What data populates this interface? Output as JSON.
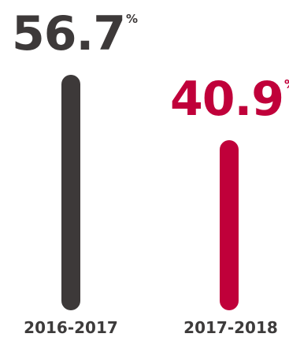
{
  "chart_data": {
    "type": "bar",
    "categories": [
      "2016-2017",
      "2017-2018"
    ],
    "values": [
      56.7,
      40.9
    ],
    "value_labels": [
      "56.7",
      "40.9"
    ],
    "unit": "%",
    "colors": [
      "#3d3939",
      "#c0003a"
    ],
    "title": "",
    "xlabel": "",
    "ylabel": "",
    "ylim": [
      0,
      56.7
    ],
    "grid": false,
    "legend": "none"
  }
}
